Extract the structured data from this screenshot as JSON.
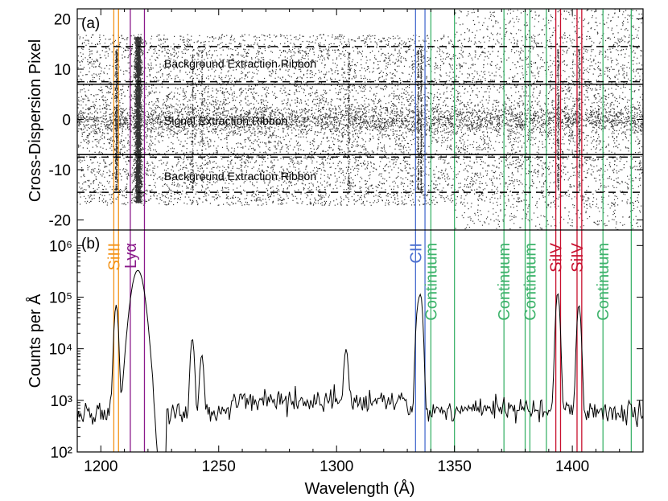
{
  "chart_data": [
    {
      "type": "scatter",
      "panel_label": "(a)",
      "ylabel": "Cross-Dispersion Pixel",
      "xlim": [
        1190,
        1430
      ],
      "ylim": [
        -22,
        22
      ],
      "yticks": [
        -20,
        -10,
        0,
        10,
        20
      ],
      "signal_ribbon": [
        -7,
        7
      ],
      "background_ribbons": [
        [
          7.5,
          14.5
        ],
        [
          -14.5,
          -7.5
        ]
      ],
      "annotations": {
        "bg_top": "Background Extraction Ribbon",
        "signal": "Signal Extraction Ribbon",
        "bg_bottom": "Background Extraction Ribbon"
      },
      "bright_features_A": [
        1206.5,
        1215.7,
        1238.8,
        1242.8,
        1305,
        1334.5,
        1335.7,
        1393.8,
        1402.8
      ]
    },
    {
      "type": "line",
      "panel_label": "(b)",
      "ylabel": "Counts per Å",
      "xlabel": "Wavelength (Å)",
      "xlim": [
        1190,
        1430
      ],
      "ylim": [
        100,
        2000000
      ],
      "yscale": "log",
      "xticks": [
        1200,
        1250,
        1300,
        1350,
        1400
      ],
      "ytick_labels": [
        "10²",
        "10³",
        "10⁴",
        "10⁵",
        "10⁶"
      ],
      "ytick_values": [
        100,
        1000,
        10000,
        100000,
        1000000
      ],
      "series_peaks": [
        {
          "x": 1206.5,
          "y": 70000
        },
        {
          "x": 1215.7,
          "y": 330000
        },
        {
          "x": 1238.8,
          "y": 15000
        },
        {
          "x": 1242.8,
          "y": 7000
        },
        {
          "x": 1304,
          "y": 9000
        },
        {
          "x": 1334.5,
          "y": 60000
        },
        {
          "x": 1335.7,
          "y": 100000
        },
        {
          "x": 1393.8,
          "y": 120000
        },
        {
          "x": 1402.8,
          "y": 70000
        }
      ],
      "line_markers": [
        {
          "label": "SiIII",
          "color": "#f4941a",
          "x": [
            1205.5,
            1207.5
          ]
        },
        {
          "label": "Lyα",
          "color": "#8a1a8a",
          "x": [
            1212.5,
            1218.5
          ]
        },
        {
          "label": "CII",
          "color": "#4a6ecf",
          "x": [
            1333.5,
            1337.5
          ]
        },
        {
          "label": "SiIV",
          "color": "#c8102e",
          "x": [
            1393,
            1395
          ]
        },
        {
          "label": "SiIV",
          "color": "#c8102e",
          "x": [
            1402,
            1404
          ]
        }
      ],
      "continuum_windows": [
        {
          "label": "Continuum",
          "x": [
            1340,
            1350
          ]
        },
        {
          "label": "Continuum",
          "x": [
            1371,
            1380
          ]
        },
        {
          "label": "Continuum",
          "x": [
            1382,
            1389
          ]
        },
        {
          "label": "Continuum",
          "x": [
            1413,
            1425
          ]
        }
      ],
      "continuum_color": "#3db36b"
    }
  ]
}
